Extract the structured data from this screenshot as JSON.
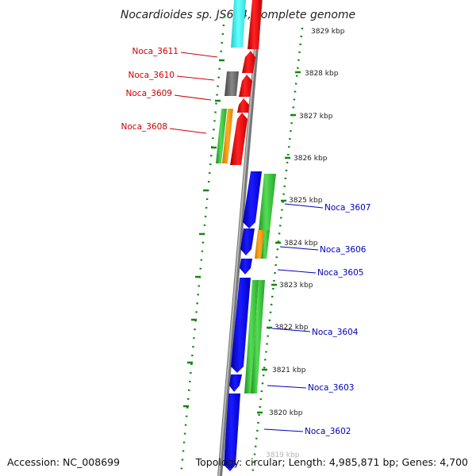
{
  "title": "Nocardioides sp. JS614, complete genome",
  "accession": "Accession: NC_008699",
  "topology": "Topology: circular; Length: 4,985,871 bp; Genes: 4,700",
  "kbp_labels": [
    "3829 kbp",
    "3828 kbp",
    "3827 kbp",
    "3826 kbp",
    "3825 kbp",
    "3824 kbp",
    "3823 kbp",
    "3822 kbp",
    "3821 kbp",
    "3820 kbp",
    "3819 kbp"
  ],
  "gene_labels": {
    "noca_3611": "Noca_3611",
    "noca_3610": "Noca_3610",
    "noca_3609": "Noca_3609",
    "noca_3608": "Noca_3608",
    "noca_3607": "Noca_3607",
    "noca_3606": "Noca_3606",
    "noca_3605": "Noca_3605",
    "noca_3604": "Noca_3604",
    "noca_3603": "Noca_3603",
    "noca_3602": "Noca_3602"
  },
  "colors": {
    "reverse_strand": "#ff0000",
    "forward_strand": "#0000ee",
    "green_track": "#33bb33",
    "orange_track": "#ff9900",
    "cyan_track": "#33eeee",
    "gray_track": "#666666",
    "backbone": "#888888",
    "dots": "#118811",
    "label_red": "#cc0000",
    "label_blue": "#0000bb"
  }
}
